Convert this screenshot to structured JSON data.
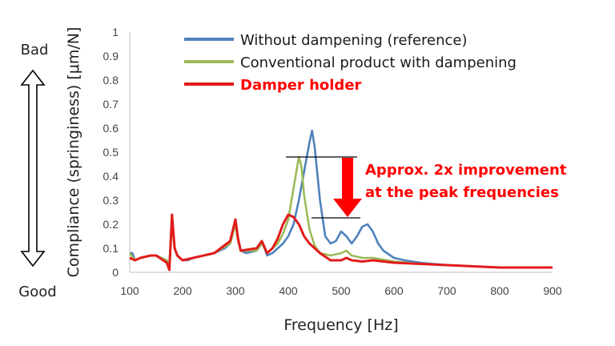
{
  "chart_data": {
    "type": "line",
    "xlabel": "Frequency [Hz]",
    "ylabel": "Compliance (springiness) [μm/N]",
    "xlim": [
      100,
      900
    ],
    "ylim": [
      0,
      1
    ],
    "x_ticks": [
      "100",
      "200",
      "300",
      "400",
      "500",
      "600",
      "700",
      "800",
      "900"
    ],
    "y_ticks": [
      "0",
      "0.1",
      "0.2",
      "0.3",
      "0.4",
      "0.5",
      "0.6",
      "0.7",
      "0.8",
      "0.9",
      "1"
    ],
    "grid": false,
    "legend_position": "top",
    "series": [
      {
        "name": "Without dampening (reference)",
        "color": "#4f81bd",
        "points": [
          [
            100,
            0.08
          ],
          [
            105,
            0.08
          ],
          [
            110,
            0.05
          ],
          [
            120,
            0.06
          ],
          [
            130,
            0.065
          ],
          [
            140,
            0.07
          ],
          [
            150,
            0.07
          ],
          [
            160,
            0.06
          ],
          [
            170,
            0.05
          ],
          [
            175,
            0.03
          ],
          [
            180,
            0.22
          ],
          [
            185,
            0.1
          ],
          [
            190,
            0.07
          ],
          [
            200,
            0.05
          ],
          [
            210,
            0.05
          ],
          [
            220,
            0.06
          ],
          [
            240,
            0.07
          ],
          [
            260,
            0.08
          ],
          [
            280,
            0.1
          ],
          [
            290,
            0.12
          ],
          [
            300,
            0.21
          ],
          [
            305,
            0.14
          ],
          [
            310,
            0.09
          ],
          [
            320,
            0.08
          ],
          [
            340,
            0.09
          ],
          [
            350,
            0.12
          ],
          [
            355,
            0.1
          ],
          [
            360,
            0.07
          ],
          [
            370,
            0.08
          ],
          [
            380,
            0.1
          ],
          [
            390,
            0.12
          ],
          [
            400,
            0.15
          ],
          [
            410,
            0.2
          ],
          [
            420,
            0.3
          ],
          [
            430,
            0.42
          ],
          [
            440,
            0.54
          ],
          [
            445,
            0.59
          ],
          [
            450,
            0.52
          ],
          [
            460,
            0.3
          ],
          [
            470,
            0.15
          ],
          [
            480,
            0.12
          ],
          [
            490,
            0.13
          ],
          [
            500,
            0.17
          ],
          [
            510,
            0.15
          ],
          [
            520,
            0.12
          ],
          [
            530,
            0.15
          ],
          [
            540,
            0.19
          ],
          [
            550,
            0.2
          ],
          [
            560,
            0.17
          ],
          [
            570,
            0.12
          ],
          [
            580,
            0.09
          ],
          [
            600,
            0.06
          ],
          [
            620,
            0.05
          ],
          [
            650,
            0.04
          ],
          [
            700,
            0.03
          ],
          [
            750,
            0.025
          ],
          [
            800,
            0.02
          ],
          [
            850,
            0.02
          ],
          [
            900,
            0.02
          ]
        ]
      },
      {
        "name": "Conventional product with dampening",
        "color": "#9bbb59",
        "points": [
          [
            100,
            0.08
          ],
          [
            110,
            0.05
          ],
          [
            120,
            0.06
          ],
          [
            140,
            0.07
          ],
          [
            150,
            0.07
          ],
          [
            170,
            0.05
          ],
          [
            175,
            0.03
          ],
          [
            180,
            0.2
          ],
          [
            185,
            0.1
          ],
          [
            190,
            0.07
          ],
          [
            200,
            0.05
          ],
          [
            220,
            0.06
          ],
          [
            260,
            0.08
          ],
          [
            290,
            0.12
          ],
          [
            300,
            0.2
          ],
          [
            305,
            0.13
          ],
          [
            310,
            0.09
          ],
          [
            340,
            0.09
          ],
          [
            350,
            0.12
          ],
          [
            360,
            0.08
          ],
          [
            380,
            0.12
          ],
          [
            390,
            0.16
          ],
          [
            400,
            0.22
          ],
          [
            410,
            0.35
          ],
          [
            420,
            0.48
          ],
          [
            425,
            0.44
          ],
          [
            430,
            0.32
          ],
          [
            440,
            0.18
          ],
          [
            450,
            0.11
          ],
          [
            460,
            0.08
          ],
          [
            480,
            0.07
          ],
          [
            500,
            0.08
          ],
          [
            510,
            0.09
          ],
          [
            520,
            0.07
          ],
          [
            540,
            0.06
          ],
          [
            560,
            0.06
          ],
          [
            600,
            0.045
          ],
          [
            650,
            0.035
          ],
          [
            700,
            0.03
          ],
          [
            800,
            0.02
          ],
          [
            900,
            0.02
          ]
        ]
      },
      {
        "name": "Damper holder",
        "color": "#e21b1b",
        "points": [
          [
            100,
            0.06
          ],
          [
            110,
            0.05
          ],
          [
            120,
            0.06
          ],
          [
            140,
            0.07
          ],
          [
            150,
            0.07
          ],
          [
            170,
            0.04
          ],
          [
            175,
            0.01
          ],
          [
            180,
            0.24
          ],
          [
            185,
            0.1
          ],
          [
            190,
            0.07
          ],
          [
            200,
            0.05
          ],
          [
            220,
            0.06
          ],
          [
            260,
            0.08
          ],
          [
            290,
            0.13
          ],
          [
            300,
            0.22
          ],
          [
            305,
            0.14
          ],
          [
            310,
            0.09
          ],
          [
            340,
            0.1
          ],
          [
            350,
            0.13
          ],
          [
            360,
            0.08
          ],
          [
            370,
            0.1
          ],
          [
            380,
            0.14
          ],
          [
            390,
            0.2
          ],
          [
            400,
            0.24
          ],
          [
            410,
            0.23
          ],
          [
            420,
            0.2
          ],
          [
            430,
            0.15
          ],
          [
            440,
            0.12
          ],
          [
            460,
            0.08
          ],
          [
            480,
            0.05
          ],
          [
            500,
            0.05
          ],
          [
            510,
            0.06
          ],
          [
            520,
            0.05
          ],
          [
            540,
            0.045
          ],
          [
            560,
            0.05
          ],
          [
            600,
            0.04
          ],
          [
            650,
            0.035
          ],
          [
            700,
            0.03
          ],
          [
            800,
            0.02
          ],
          [
            900,
            0.02
          ]
        ]
      }
    ]
  },
  "side": {
    "top": "Bad",
    "bottom": "Good"
  },
  "annotation": {
    "line1": "Approx. 2x improvement",
    "line2": "at the peak frequencies"
  }
}
